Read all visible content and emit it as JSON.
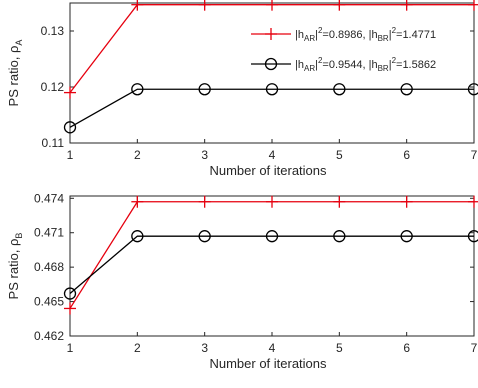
{
  "chart_data": [
    {
      "type": "line",
      "ylabel_text": "PS ratio, ρ",
      "ylabel_sub": "A",
      "xlabel": "Number of iterations",
      "x": [
        1,
        2,
        3,
        4,
        5,
        6,
        7
      ],
      "xlim": [
        1,
        7
      ],
      "ylim": [
        0.11,
        0.135
      ],
      "yticks": [
        0.11,
        0.12,
        0.13
      ],
      "ytick_labels": [
        "0.11",
        "0.12",
        "0.13"
      ],
      "xticks": [
        1,
        2,
        3,
        4,
        5,
        6,
        7
      ],
      "xtick_labels": [
        "1",
        "2",
        "3",
        "4",
        "5",
        "6",
        "7"
      ],
      "grid": false,
      "legend_position": "top-right",
      "series": [
        {
          "name": "|h_AR|^2=0.8986, |h_BR|^2=1.4771",
          "color": "#e6000f",
          "marker": "plus",
          "values": [
            0.119,
            0.1347,
            0.1347,
            0.1347,
            0.1347,
            0.1347,
            0.1347
          ]
        },
        {
          "name": "|h_AR|^2=0.9544, |h_BR|^2=1.5862",
          "color": "#000000",
          "marker": "circle",
          "values": [
            0.1128,
            0.1196,
            0.1196,
            0.1196,
            0.1196,
            0.1196,
            0.1196
          ]
        }
      ]
    },
    {
      "type": "line",
      "ylabel_text": "PS ratio, ρ",
      "ylabel_sub": "B",
      "xlabel": "Number of iterations",
      "x": [
        1,
        2,
        3,
        4,
        5,
        6,
        7
      ],
      "xlim": [
        1,
        7
      ],
      "ylim": [
        0.462,
        0.4742
      ],
      "yticks": [
        0.462,
        0.465,
        0.468,
        0.471,
        0.474
      ],
      "ytick_labels": [
        "0.462",
        "0.465",
        "0.468",
        "0.471",
        "0.474"
      ],
      "xticks": [
        1,
        2,
        3,
        4,
        5,
        6,
        7
      ],
      "xtick_labels": [
        "1",
        "2",
        "3",
        "4",
        "5",
        "6",
        "7"
      ],
      "grid": false,
      "series": [
        {
          "color": "#e6000f",
          "marker": "plus",
          "values": [
            0.4644,
            0.4737,
            0.4737,
            0.4737,
            0.4737,
            0.4737,
            0.4737
          ]
        },
        {
          "color": "#000000",
          "marker": "circle",
          "values": [
            0.4657,
            0.4707,
            0.4707,
            0.4707,
            0.4707,
            0.4707,
            0.4707
          ]
        }
      ]
    }
  ],
  "legend": {
    "entries": [
      {
        "ar_val": "0.8986",
        "br_val": "1.4771"
      },
      {
        "ar_val": "0.9544",
        "br_val": "1.5862"
      }
    ],
    "h": "h",
    "ar_sub": "AR",
    "br_sub": "BR",
    "sq": "2",
    "eq": "=",
    "sep": ", ",
    "bar": "|"
  }
}
